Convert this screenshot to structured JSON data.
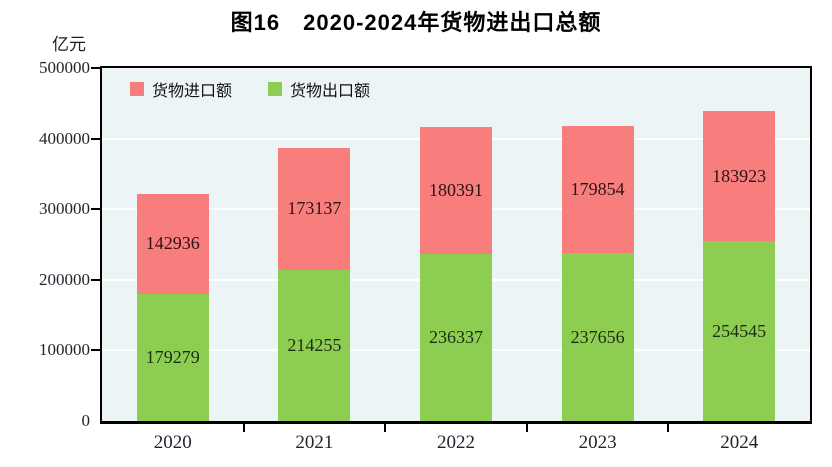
{
  "title": "图16　2020-2024年货物进出口总额",
  "unit_label": "亿元",
  "legend": [
    {
      "label": "货物进口额",
      "color": "#f87e7e"
    },
    {
      "label": "货物出口额",
      "color": "#8dce52"
    }
  ],
  "chart_data": {
    "type": "bar",
    "stacked": true,
    "title": "图16　2020-2024年货物进出口总额",
    "ylabel": "亿元",
    "categories": [
      "2020",
      "2021",
      "2022",
      "2023",
      "2024"
    ],
    "series": [
      {
        "name": "货物出口额",
        "color": "#8dce52",
        "label_color": "#1c2e10",
        "values": [
          179279,
          214255,
          236337,
          237656,
          254545
        ]
      },
      {
        "name": "货物进口额",
        "color": "#f87e7e",
        "label_color": "#2e1212",
        "values": [
          142936,
          173137,
          180391,
          179854,
          183923
        ]
      }
    ],
    "ylim": [
      0,
      500000
    ],
    "yticks": [
      0,
      100000,
      200000,
      300000,
      400000,
      500000
    ],
    "grid": true,
    "legend_position": "top-left"
  },
  "colors": {
    "plot_background": "#ecf4f6",
    "grid_line": "#ffffff",
    "axis": "#000000"
  }
}
